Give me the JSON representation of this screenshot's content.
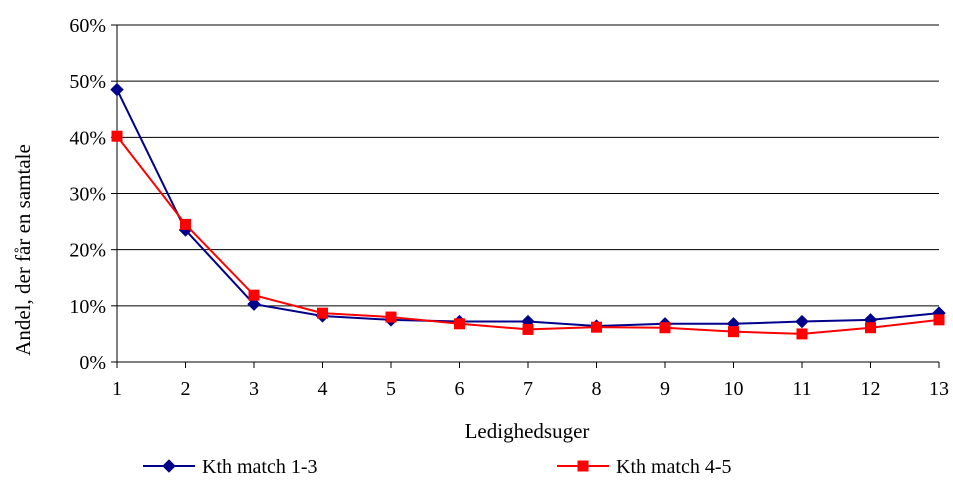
{
  "chart_data": {
    "type": "line",
    "title": "",
    "xlabel": "Ledighedsuger",
    "ylabel": "Andel, der får en samtale",
    "categories": [
      "1",
      "2",
      "3",
      "4",
      "5",
      "6",
      "7",
      "8",
      "9",
      "10",
      "11",
      "12",
      "13"
    ],
    "ylim": [
      0,
      60
    ],
    "yticks": [
      "0%",
      "10%",
      "20%",
      "30%",
      "40%",
      "50%",
      "60%"
    ],
    "grid": "horizontal",
    "legend_position": "bottom",
    "series": [
      {
        "name": "Kth match 1-3",
        "color": "#00008B",
        "marker": "diamond",
        "values": [
          48.5,
          23.5,
          10.3,
          8.2,
          7.5,
          7.2,
          7.2,
          6.4,
          6.8,
          6.8,
          7.2,
          7.5,
          8.7
        ]
      },
      {
        "name": "Kth match 4-5",
        "color": "#FF0000",
        "marker": "square",
        "values": [
          40.2,
          24.5,
          11.9,
          8.7,
          8.0,
          6.8,
          5.8,
          6.2,
          6.1,
          5.4,
          5.0,
          6.1,
          7.5
        ]
      }
    ]
  }
}
